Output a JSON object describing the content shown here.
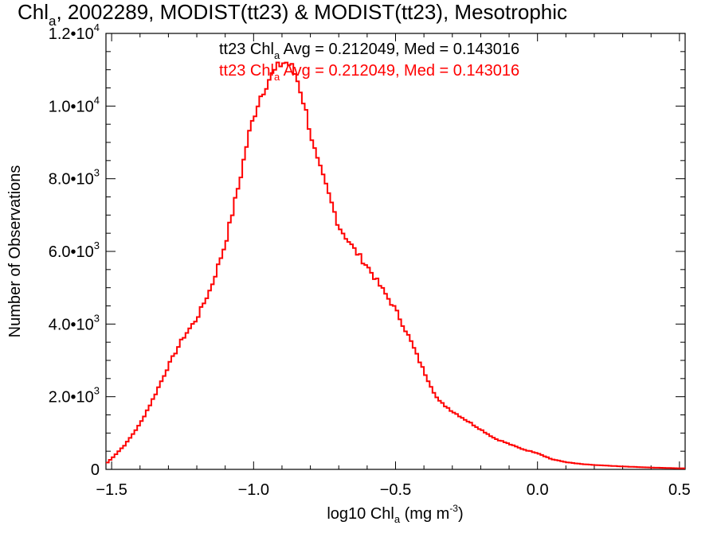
{
  "chart_data": {
    "type": "line",
    "title_main": "Chl",
    "title_sub": "a",
    "title_rest": ", 2002289, MODIST(tt23) & MODIST(tt23), Mesotrophic",
    "xlabel_main": "log10 Chl",
    "xlabel_sub": "a",
    "xlabel_units": " (mg m",
    "xlabel_units_sup": "-3",
    "xlabel_close": ")",
    "ylabel": "Number of Observations",
    "xlim": [
      -1.52,
      0.52
    ],
    "ylim": [
      0,
      12000
    ],
    "x_ticks": [
      {
        "value": -1.5,
        "label": "−1.5"
      },
      {
        "value": -1.0,
        "label": "−1.0"
      },
      {
        "value": -0.5,
        "label": "−0.5"
      },
      {
        "value": 0.0,
        "label": "0.0"
      },
      {
        "value": 0.5,
        "label": "0.5"
      }
    ],
    "y_ticks": [
      {
        "value": 0,
        "mant": "0",
        "exp": ""
      },
      {
        "value": 2000,
        "mant": "2.0•10",
        "exp": "3"
      },
      {
        "value": 4000,
        "mant": "4.0•10",
        "exp": "3"
      },
      {
        "value": 6000,
        "mant": "6.0•10",
        "exp": "3"
      },
      {
        "value": 8000,
        "mant": "8.0•10",
        "exp": "3"
      },
      {
        "value": 10000,
        "mant": "1.0•10",
        "exp": "4"
      },
      {
        "value": 12000,
        "mant": "1.2•10",
        "exp": "4"
      }
    ],
    "annotations": [
      {
        "prefix": "tt23 Chl",
        "sub": "a",
        "rest": " Avg = 0.212049, Med = 0.143016",
        "color": "#000000"
      },
      {
        "prefix": "tt23 Chl",
        "sub": "a",
        "rest": " Avg = 0.212049, Med = 0.143016",
        "color": "#ff0000"
      }
    ],
    "series": [
      {
        "color": "#ff0000",
        "x": [
          -1.52,
          -1.5,
          -1.45,
          -1.4,
          -1.35,
          -1.3,
          -1.25,
          -1.2,
          -1.15,
          -1.1,
          -1.05,
          -1.02,
          -1.0,
          -0.98,
          -0.95,
          -0.92,
          -0.9,
          -0.88,
          -0.86,
          -0.84,
          -0.82,
          -0.8,
          -0.78,
          -0.75,
          -0.72,
          -0.7,
          -0.65,
          -0.6,
          -0.55,
          -0.5,
          -0.45,
          -0.4,
          -0.35,
          -0.3,
          -0.25,
          -0.2,
          -0.15,
          -0.1,
          -0.05,
          0.0,
          0.05,
          0.1,
          0.15,
          0.2,
          0.3,
          0.4,
          0.5,
          0.52
        ],
        "y": [
          150,
          300,
          700,
          1250,
          2000,
          2850,
          3600,
          4150,
          5000,
          6200,
          7900,
          9100,
          9700,
          10200,
          10700,
          11000,
          11200,
          11200,
          11000,
          10600,
          10000,
          9300,
          8600,
          7900,
          7200,
          6700,
          6100,
          5600,
          5000,
          4400,
          3600,
          2700,
          1900,
          1600,
          1350,
          1100,
          850,
          700,
          550,
          450,
          280,
          200,
          150,
          120,
          80,
          50,
          30,
          30
        ]
      }
    ]
  }
}
